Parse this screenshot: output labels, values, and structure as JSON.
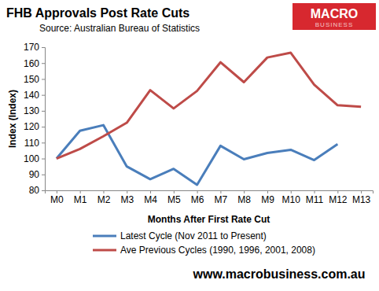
{
  "chart_data": {
    "type": "line",
    "title": "FHB Approvals Post Rate Cuts",
    "subtitle": "Source: Australian Bureau of Statistics",
    "x_label": "Months After First Rate Cut",
    "y_label": "Index (Index)",
    "annotations": [
      "MACRO",
      "BUSINESS",
      "www.macrobusiness.com.au"
    ],
    "categories": [
      "M0",
      "M1",
      "M2",
      "M3",
      "M4",
      "M5",
      "M6",
      "M7",
      "M8",
      "M9",
      "M10",
      "M11",
      "M12",
      "M13"
    ],
    "series": [
      {
        "name": "Latest Cycle (Nov 2011 to Present)",
        "color": "#4a7ebb",
        "values": [
          100,
          117.5,
          121,
          95,
          87,
          93.5,
          83.5,
          108,
          99.5,
          103.5,
          105.5,
          99,
          109,
          null
        ]
      },
      {
        "name": "Ave Previous Cycles (1990, 1996, 2001, 2008)",
        "color": "#be4b48",
        "values": [
          100,
          106,
          114,
          122.5,
          143,
          131.5,
          142.5,
          160.5,
          148,
          163.5,
          166.5,
          146.5,
          133.5,
          132.5
        ]
      }
    ],
    "ylim": [
      80,
      170
    ],
    "yticks": [
      80,
      90,
      100,
      110,
      120,
      130,
      140,
      150,
      160,
      170
    ],
    "grid": false,
    "legend": "bottom"
  }
}
